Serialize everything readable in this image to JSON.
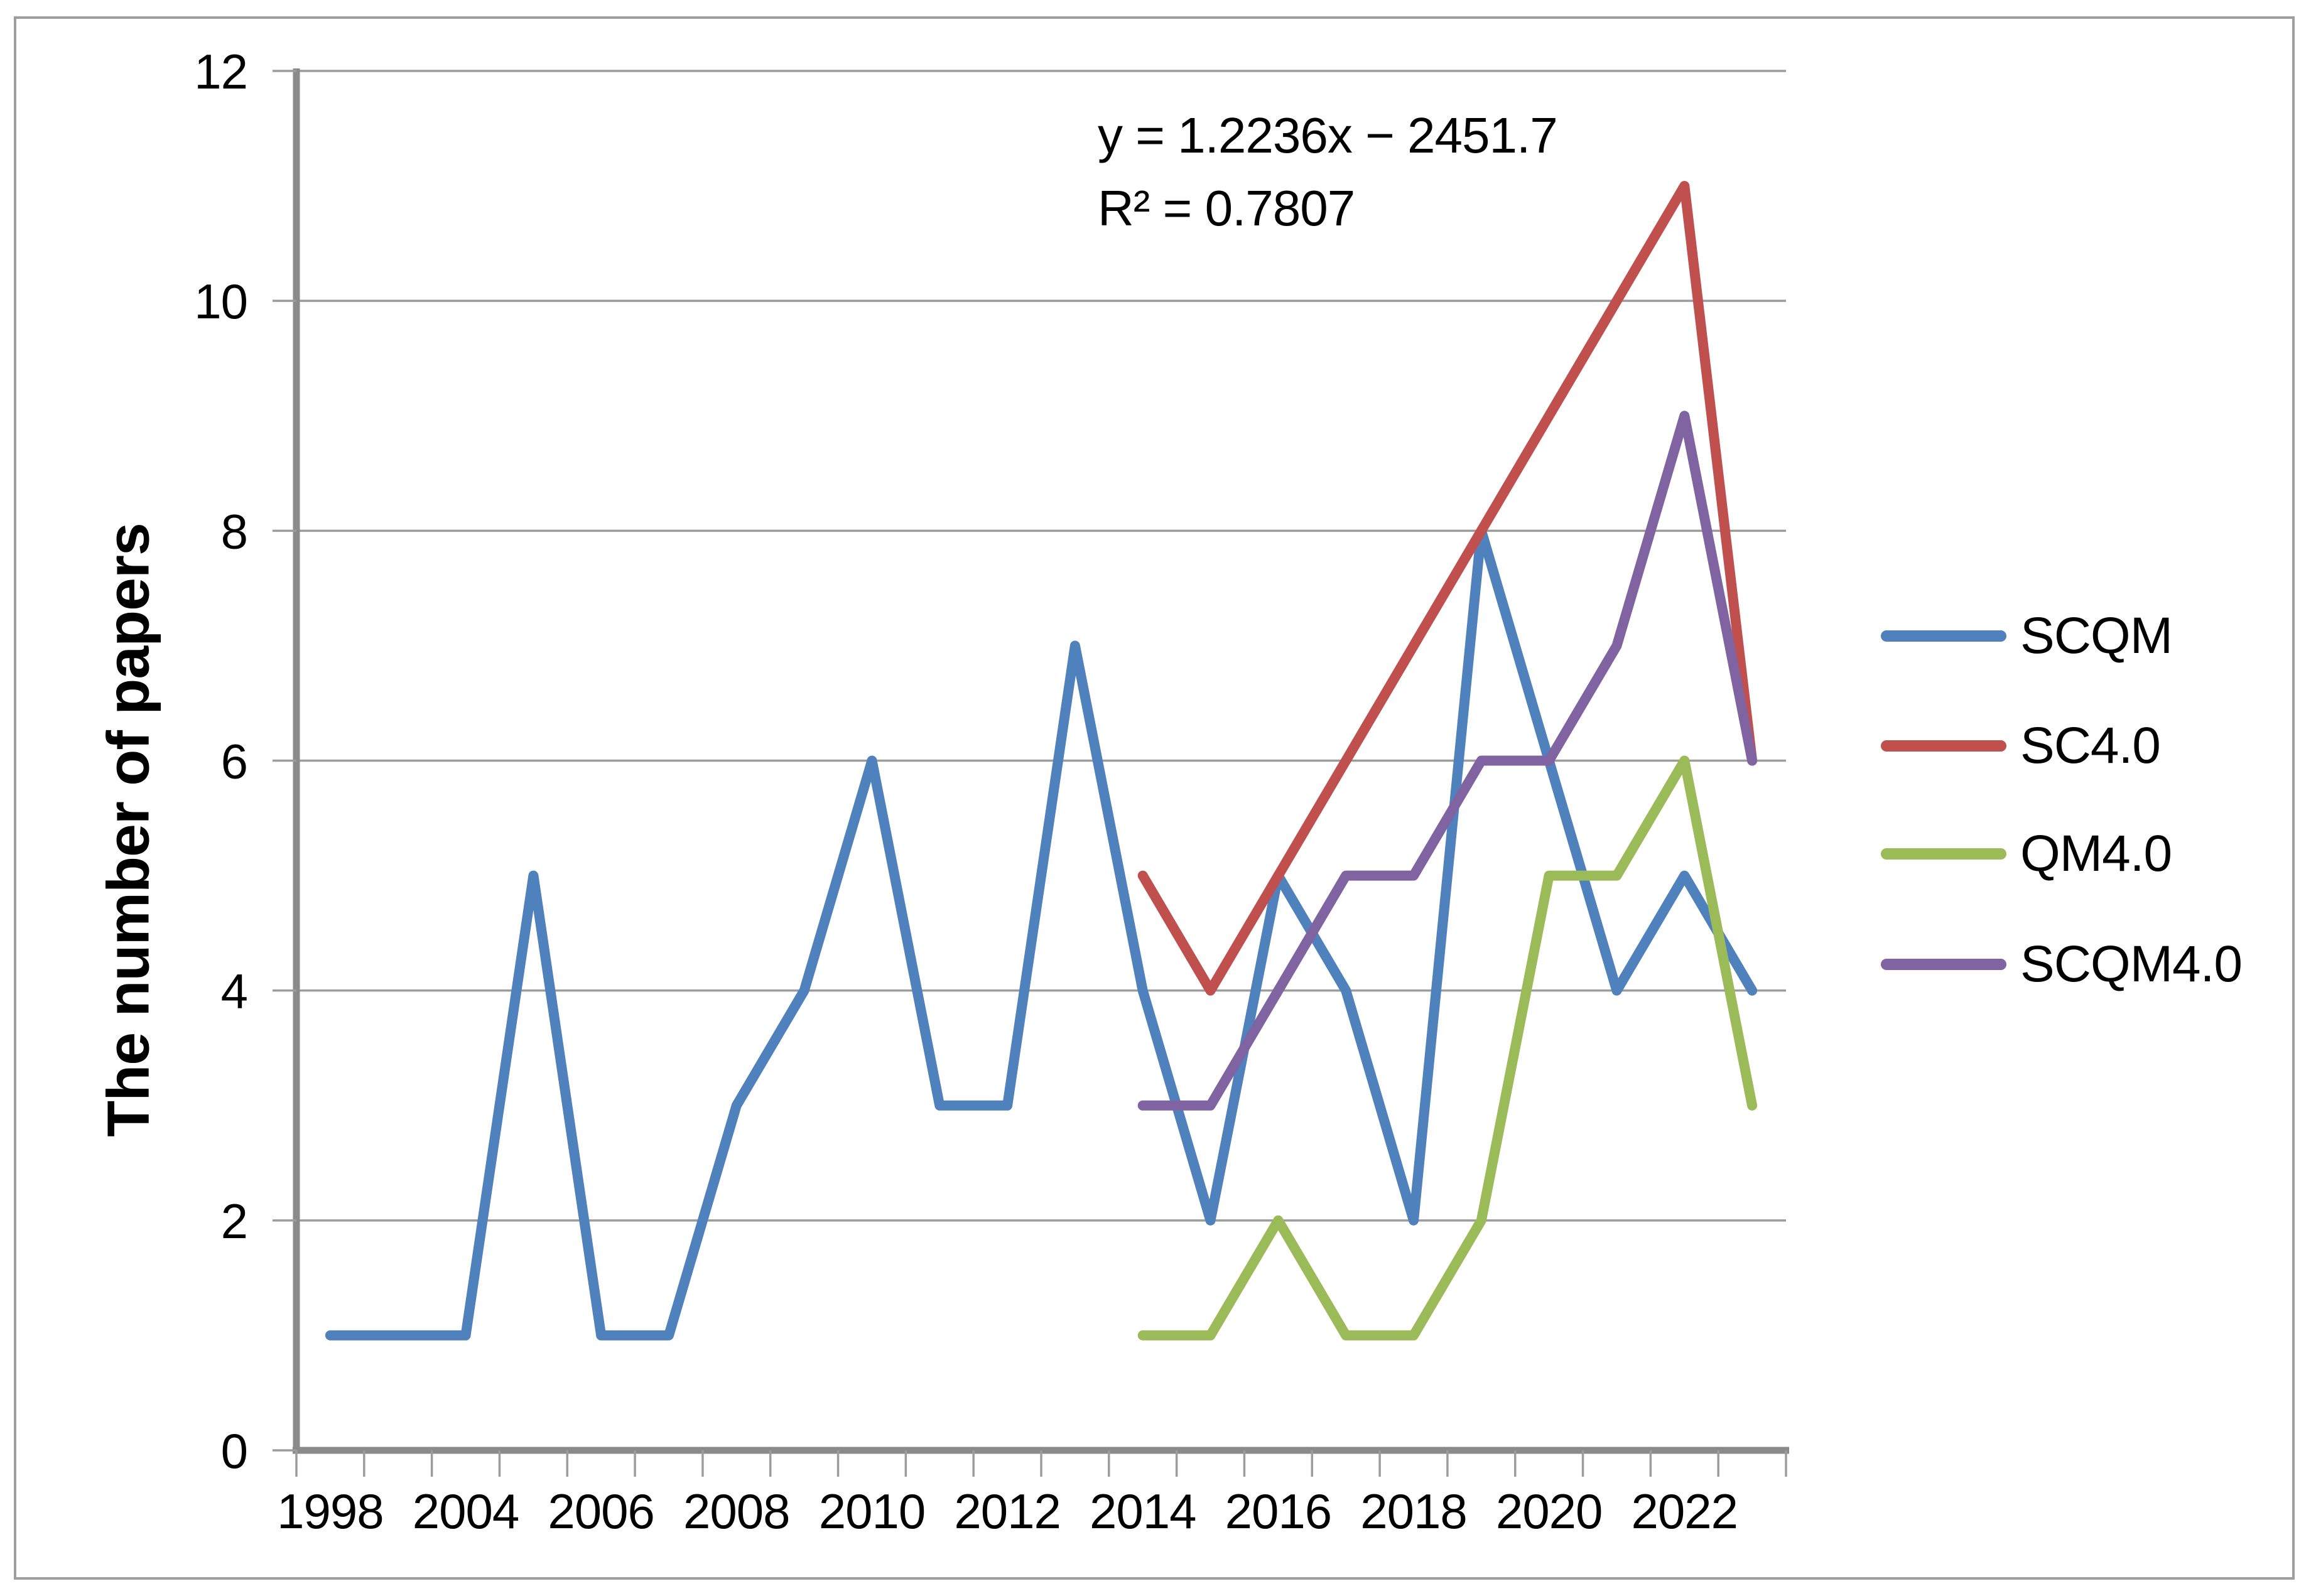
{
  "chart_data": {
    "type": "line",
    "title": "",
    "xlabel": "",
    "ylabel": "The number of papers",
    "ylim": [
      0,
      12
    ],
    "ytick_interval": 2,
    "yticks": [
      0,
      2,
      4,
      6,
      8,
      10,
      12
    ],
    "grid": true,
    "legend_position": "right-middle",
    "categories": [
      1998,
      2003,
      2004,
      2005,
      2006,
      2007,
      2008,
      2009,
      2010,
      2011,
      2012,
      2013,
      2014,
      2015,
      2016,
      2017,
      2018,
      2019,
      2020,
      2021,
      2022,
      2023
    ],
    "xtick_labels_shown": [
      "1998",
      "2004",
      "2006",
      "2008",
      "2010",
      "2012",
      "2014",
      "2016",
      "2018",
      "2020",
      "2022"
    ],
    "series": [
      {
        "name": "SCQM",
        "color": "#4F81BD",
        "values": [
          1,
          1,
          1,
          5,
          1,
          1,
          3,
          4,
          6,
          3,
          3,
          7,
          4,
          2,
          5,
          4,
          2,
          8,
          6,
          4,
          5,
          4
        ]
      },
      {
        "name": "SC4.0",
        "color": "#C0504D",
        "values": [
          null,
          null,
          null,
          null,
          null,
          null,
          null,
          null,
          null,
          null,
          null,
          null,
          5,
          4,
          5,
          6,
          7,
          8,
          9,
          10,
          11,
          6
        ]
      },
      {
        "name": "QM4.0",
        "color": "#9BBB59",
        "values": [
          null,
          null,
          null,
          null,
          null,
          null,
          null,
          null,
          null,
          null,
          null,
          null,
          1,
          1,
          2,
          1,
          1,
          2,
          5,
          5,
          6,
          3
        ]
      },
      {
        "name": "SCQM4.0",
        "color": "#8064A2",
        "values": [
          null,
          null,
          null,
          null,
          null,
          null,
          null,
          null,
          null,
          null,
          null,
          null,
          3,
          3,
          4,
          5,
          5,
          6,
          6,
          7,
          9,
          6
        ]
      }
    ],
    "trendline_annotation": {
      "equation": "y = 1.2236x − 2451.7",
      "r_squared": "R² = 0.7807"
    }
  },
  "legend": [
    {
      "label": "SCQM",
      "color": "#4F81BD"
    },
    {
      "label": "SC4.0",
      "color": "#C0504D"
    },
    {
      "label": "QM4.0",
      "color": "#9BBB59"
    },
    {
      "label": "SCQM4.0",
      "color": "#8064A2"
    }
  ],
  "style_colors": {
    "gridline": "#9C9C9C",
    "axis": "#8A8A8A",
    "border": "#9E9E9E",
    "text": "#000000"
  }
}
